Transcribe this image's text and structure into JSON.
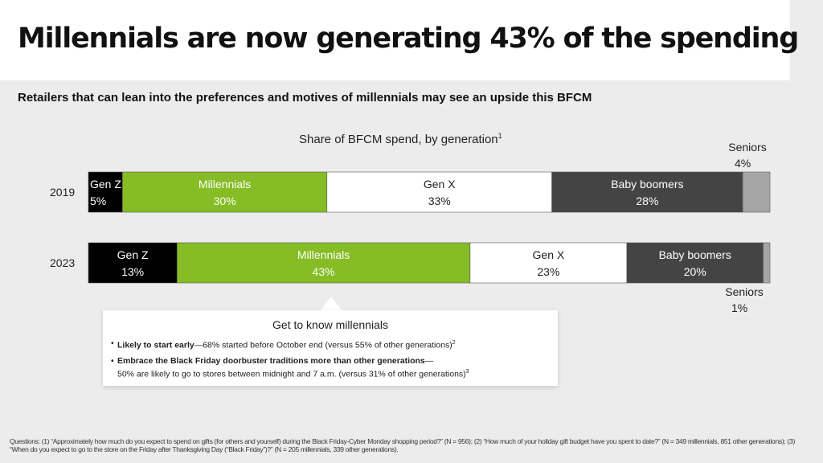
{
  "header": {
    "title": "Millennials are now generating 43% of the spending",
    "subtitle": "Retailers that can lean into the preferences and motives of millennials may see an upside this BFCM"
  },
  "chart_data": {
    "type": "bar",
    "stacked": true,
    "orientation": "horizontal",
    "normalized": true,
    "title": "Share of BFCM spend, by generation",
    "title_footnote": "1",
    "categories": [
      "2019",
      "2023"
    ],
    "unit": "%",
    "series": [
      {
        "name": "Gen Z",
        "values": [
          5,
          13
        ],
        "labels": [
          "5%",
          "13%"
        ],
        "color": "#000000",
        "text_color": "#ffffff"
      },
      {
        "name": "Millennials",
        "values": [
          30,
          43
        ],
        "labels": [
          "30%",
          "43%"
        ],
        "color": "#86bc25",
        "text_color": "#ffffff"
      },
      {
        "name": "Gen X",
        "values": [
          33,
          23
        ],
        "labels": [
          "33%",
          "23%"
        ],
        "color": "#ffffff",
        "text_color": "#222222"
      },
      {
        "name": "Baby boomers",
        "values": [
          28,
          20
        ],
        "labels": [
          "28%",
          "20%"
        ],
        "color": "#444444",
        "text_color": "#ffffff"
      },
      {
        "name": "Seniors",
        "values": [
          4,
          1
        ],
        "labels": [
          "4%",
          "1%"
        ],
        "color": "#a6a6a6",
        "text_color": "#222222"
      }
    ],
    "legend": "inline"
  },
  "callout": {
    "title": "Get to know millennials",
    "bullets": [
      {
        "bold": "Likely to start early",
        "text": "—68% started before October end (versus 55% of other generations)",
        "sup": "2"
      },
      {
        "bold": "Embrace the Black Friday doorbuster traditions more than other generations",
        "text": "—",
        "line2": "50% are likely to go to stores between midnight and 7 a.m. (versus 31% of other generations)",
        "sup": "3"
      }
    ]
  },
  "footnote": "Questions: (1) “Approximately how much do you expect to spend on gifts (for others and yourself) during the Black Friday-Cyber Monday shopping period?” (N = 956); (2) “How much of your holiday gift budget have you spent to date?” (N = 349 millennials, 851 other generations); (3) “When do you expect to go to the store on the Friday after Thanksgiving Day (“Black Friday”)?” (N = 205 millennials, 339 other generations).",
  "colors": {
    "background": "#ececec",
    "accent": "#86bc25"
  }
}
